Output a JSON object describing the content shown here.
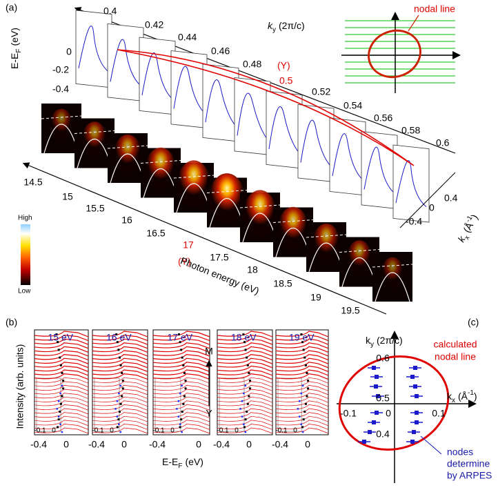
{
  "panel_a": {
    "label": "(a)",
    "ky_ticks": [
      "0.4",
      "0.42",
      "0.44",
      "0.46",
      "0.48",
      "0.5",
      "0.52",
      "0.54",
      "0.56",
      "0.58",
      "0.6"
    ],
    "ky_title": {
      "symbol": "k",
      "sub": "y",
      "unit": "(2π/c)"
    },
    "ky_marker": "(Y)",
    "energy_title": {
      "main": "E-E",
      "sub": "F",
      "unit": "(eV)"
    },
    "energy_ticks": [
      "0",
      "-0.2",
      "-0.4"
    ],
    "inset_label": "nodal line",
    "photon_ticks": [
      "14.5",
      "15",
      "15.5",
      "16",
      "16.5",
      "17",
      "17.5",
      "18",
      "18.5",
      "19",
      "19.5"
    ],
    "photon_marker": "(Y)",
    "photon_title": "Photon energy (eV)",
    "kx_ticks": [
      "0.4",
      "0",
      "-0.4"
    ],
    "kx_title": {
      "symbol": "k",
      "sub": "x",
      "unit_open": "(Å",
      "sup": "-1",
      "unit_close": ")"
    },
    "colorbar": {
      "high": "High",
      "low": "Low"
    }
  },
  "panel_b": {
    "label": "(b)",
    "panels": [
      {
        "title": "15 eV",
        "ticks": [
          "-0.4",
          "0"
        ],
        "inset_ticks": [
          "-0.1",
          "0"
        ]
      },
      {
        "title": "16 eV",
        "ticks": [
          "-0.4",
          "0"
        ],
        "inset_ticks": [
          "-0.1",
          "0"
        ]
      },
      {
        "title": "17 eV",
        "ticks": [
          "-0.4",
          "0"
        ],
        "inset_ticks": [
          "-0.1",
          "0"
        ]
      },
      {
        "title": "18 eV",
        "ticks": [
          "-0.4",
          "0"
        ],
        "inset_ticks": [
          "-0.1",
          "0"
        ]
      },
      {
        "title": "19 eV",
        "ticks": [
          "-0.4",
          "0"
        ],
        "inset_ticks": [
          "-0.1",
          "0"
        ]
      }
    ],
    "y_title": "Intensity (arb. units)",
    "x_title": {
      "main": "E-E",
      "sub": "F",
      "unit": "(eV)"
    },
    "arrow_top": "M",
    "arrow_bottom": "Y"
  },
  "panel_c": {
    "label": "(c)",
    "ky_title": {
      "symbol": "k",
      "sub": "y",
      "unit": "(2π/c)"
    },
    "ky_ticks": [
      "0.6",
      "0.5",
      "0.4"
    ],
    "kx_title": {
      "symbol": "k",
      "sub": "x",
      "unit_open": "(Å",
      "sup": "-1",
      "unit_close": ")"
    },
    "kx_ticks": [
      "-0.1",
      "0",
      "0.1"
    ],
    "calc_label": [
      "calculated",
      "nodal line"
    ],
    "nodes_label": [
      "nodes",
      "determine",
      "by ARPES"
    ]
  }
}
